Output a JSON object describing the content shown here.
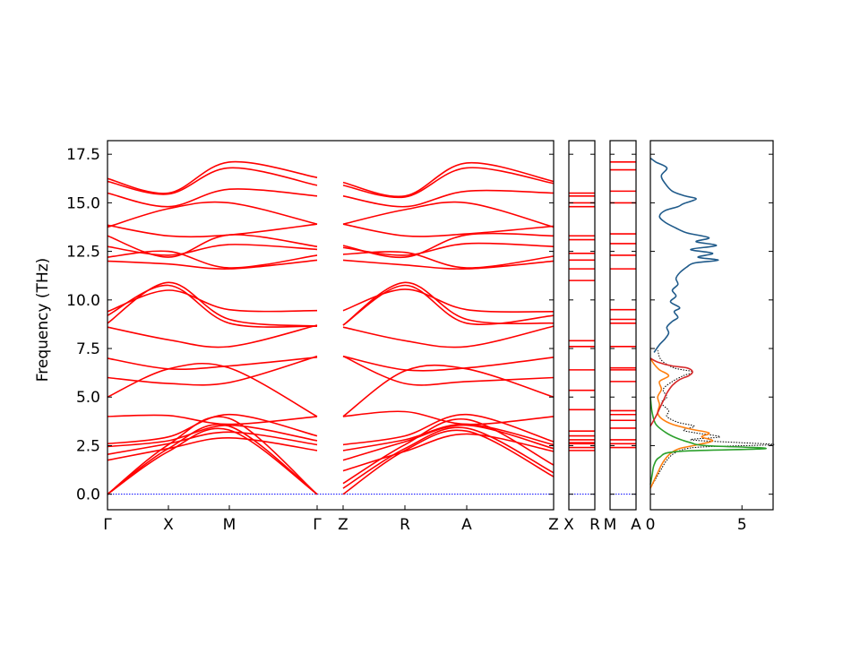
{
  "chart_data": {
    "type": "line",
    "ylabel": "Frequency (THz)",
    "ylim": [
      -0.8,
      18.2
    ],
    "yticks": [
      "0.0",
      "2.5",
      "5.0",
      "7.5",
      "10.0",
      "12.5",
      "15.0",
      "17.5"
    ],
    "ytick_values": [
      0,
      2.5,
      5,
      7.5,
      10,
      12.5,
      15,
      17.5
    ],
    "colors": {
      "band": "#ff0000",
      "zero_line": "#0000ff",
      "dos_total": "#000000",
      "dos_blue": "#1f5a8a",
      "dos_orange": "#ff7f0e",
      "dos_green": "#2ca02c",
      "dos_red": "#d62728"
    },
    "bands": {
      "path_ticks": [
        "Γ",
        "X",
        "M",
        "Γ",
        "Z",
        "R",
        "A",
        "Z"
      ],
      "segments": [
        {
          "from": "Γ",
          "to": "Γ",
          "x": [
            0,
            1,
            2,
            3
          ],
          "branches": [
            [
              0.0,
              2.2,
              3.3,
              0.0
            ],
            [
              0.0,
              2.35,
              3.5,
              0.0
            ],
            [
              0.0,
              2.55,
              3.9,
              0.0
            ],
            [
              1.75,
              2.35,
              2.9,
              2.25
            ],
            [
              2.05,
              2.6,
              3.2,
              2.55
            ],
            [
              2.45,
              2.75,
              3.55,
              2.75
            ],
            [
              2.6,
              2.95,
              4.1,
              3.0
            ],
            [
              4.0,
              4.05,
              3.6,
              4.0
            ],
            [
              5.0,
              6.45,
              6.5,
              4.0
            ],
            [
              6.0,
              5.7,
              5.75,
              7.1
            ],
            [
              7.0,
              6.45,
              6.6,
              7.05
            ],
            [
              8.6,
              7.95,
              7.6,
              8.7
            ],
            [
              8.8,
              10.9,
              9.0,
              8.65
            ],
            [
              9.2,
              10.75,
              8.8,
              8.65
            ],
            [
              9.4,
              10.5,
              9.5,
              9.45
            ],
            [
              12.0,
              11.85,
              11.6,
              12.05
            ],
            [
              12.2,
              12.5,
              11.65,
              12.3
            ],
            [
              12.75,
              12.3,
              12.85,
              12.6
            ],
            [
              13.3,
              12.2,
              13.35,
              12.75
            ],
            [
              13.85,
              13.3,
              13.35,
              13.9
            ],
            [
              13.75,
              14.7,
              15.0,
              13.9
            ],
            [
              15.5,
              14.8,
              15.7,
              15.35
            ],
            [
              16.1,
              15.45,
              16.8,
              15.9
            ],
            [
              16.25,
              15.5,
              17.1,
              16.3
            ]
          ]
        },
        {
          "from": "Z",
          "to": "Z",
          "x": [
            0,
            1,
            2,
            3
          ],
          "branches": [
            [
              0.0,
              2.25,
              3.25,
              0.9
            ],
            [
              0.3,
              2.35,
              3.4,
              1.1
            ],
            [
              0.55,
              2.55,
              3.85,
              1.5
            ],
            [
              1.2,
              2.2,
              3.1,
              2.2
            ],
            [
              1.75,
              2.7,
              3.55,
              2.35
            ],
            [
              2.25,
              2.8,
              3.6,
              2.55
            ],
            [
              2.55,
              3.0,
              4.1,
              2.7
            ],
            [
              4.0,
              4.25,
              3.6,
              4.0
            ],
            [
              4.0,
              6.35,
              6.45,
              5.0
            ],
            [
              7.1,
              5.7,
              5.8,
              6.0
            ],
            [
              7.1,
              6.4,
              6.5,
              7.05
            ],
            [
              8.6,
              7.9,
              7.6,
              8.65
            ],
            [
              8.7,
              10.9,
              9.0,
              8.8
            ],
            [
              8.7,
              10.75,
              8.8,
              9.2
            ],
            [
              9.45,
              10.55,
              9.5,
              9.4
            ],
            [
              12.05,
              11.8,
              11.6,
              12.0
            ],
            [
              12.35,
              12.45,
              11.65,
              12.25
            ],
            [
              12.7,
              12.3,
              12.9,
              12.75
            ],
            [
              12.8,
              12.2,
              13.35,
              13.3
            ],
            [
              13.9,
              13.3,
              13.4,
              13.8
            ],
            [
              13.9,
              14.65,
              15.0,
              13.75
            ],
            [
              15.35,
              14.8,
              15.6,
              15.5
            ],
            [
              15.9,
              15.3,
              16.8,
              16.0
            ],
            [
              16.05,
              15.35,
              17.05,
              16.1
            ]
          ]
        }
      ],
      "flat_panels": [
        {
          "labels": [
            "X",
            "R"
          ],
          "levels": [
            2.25,
            2.4,
            2.6,
            2.65,
            2.8,
            3.0,
            3.25,
            4.35,
            5.35,
            6.4,
            7.6,
            7.9,
            11.0,
            11.6,
            12.05,
            12.4,
            13.1,
            13.3,
            14.8,
            15.0,
            15.35,
            15.5
          ]
        },
        {
          "labels": [
            "M",
            "A"
          ],
          "levels": [
            2.4,
            2.6,
            2.8,
            3.4,
            3.8,
            4.1,
            4.3,
            5.8,
            6.4,
            6.5,
            7.6,
            8.8,
            9.0,
            9.5,
            11.6,
            12.3,
            12.9,
            13.4,
            15.0,
            15.6,
            16.7,
            17.1
          ]
        }
      ]
    },
    "dos": {
      "xticks": [
        "0",
        "5"
      ],
      "xtick_values": [
        0,
        5
      ],
      "xlim": [
        0,
        6.7
      ],
      "curves": [
        {
          "color": "dos_total",
          "style": "dotted",
          "points": [
            [
              0,
              0.3
            ],
            [
              0.3,
              0.8
            ],
            [
              0.6,
              1.3
            ],
            [
              0.9,
              1.75
            ],
            [
              1.3,
              2.1
            ],
            [
              2.0,
              2.35
            ],
            [
              3.3,
              2.45
            ],
            [
              6.7,
              2.55
            ],
            [
              5.0,
              2.65
            ],
            [
              2.2,
              2.8
            ],
            [
              3.8,
              2.95
            ],
            [
              2.5,
              3.15
            ],
            [
              1.8,
              3.3
            ],
            [
              2.4,
              3.5
            ],
            [
              1.5,
              3.7
            ],
            [
              0.9,
              4.0
            ],
            [
              1.0,
              4.3
            ],
            [
              0.6,
              4.7
            ],
            [
              0.9,
              5.0
            ],
            [
              0.7,
              5.4
            ],
            [
              1.2,
              5.8
            ],
            [
              1.8,
              6.1
            ],
            [
              2.3,
              6.3
            ],
            [
              1.3,
              6.5
            ],
            [
              0.6,
              6.9
            ],
            [
              0.4,
              7.4
            ]
          ]
        },
        {
          "color": "dos_blue",
          "style": "solid",
          "points": [
            [
              0.2,
              7.3
            ],
            [
              0.5,
              7.7
            ],
            [
              0.8,
              8.0
            ],
            [
              1.0,
              8.3
            ],
            [
              0.9,
              8.6
            ],
            [
              1.2,
              8.9
            ],
            [
              1.5,
              9.1
            ],
            [
              1.3,
              9.4
            ],
            [
              1.6,
              9.6
            ],
            [
              1.1,
              9.9
            ],
            [
              1.4,
              10.2
            ],
            [
              1.2,
              10.5
            ],
            [
              1.5,
              10.8
            ],
            [
              1.4,
              11.1
            ],
            [
              1.6,
              11.4
            ],
            [
              2.0,
              11.7
            ],
            [
              2.4,
              11.9
            ],
            [
              3.7,
              12.05
            ],
            [
              2.6,
              12.2
            ],
            [
              3.4,
              12.4
            ],
            [
              2.2,
              12.6
            ],
            [
              3.6,
              12.8
            ],
            [
              2.5,
              13.0
            ],
            [
              3.2,
              13.2
            ],
            [
              2.0,
              13.45
            ],
            [
              1.4,
              13.7
            ],
            [
              0.8,
              14.0
            ],
            [
              0.5,
              14.3
            ],
            [
              0.8,
              14.6
            ],
            [
              1.5,
              14.8
            ],
            [
              1.8,
              14.95
            ],
            [
              2.5,
              15.2
            ],
            [
              1.9,
              15.35
            ],
            [
              1.2,
              15.6
            ],
            [
              0.8,
              16.0
            ],
            [
              0.6,
              16.4
            ],
            [
              0.9,
              16.8
            ],
            [
              0.3,
              17.1
            ],
            [
              0.0,
              17.3
            ]
          ]
        },
        {
          "color": "dos_orange",
          "style": "solid",
          "points": [
            [
              0,
              0.3
            ],
            [
              0.2,
              0.7
            ],
            [
              0.4,
              1.1
            ],
            [
              0.6,
              1.5
            ],
            [
              0.8,
              1.8
            ],
            [
              1.1,
              2.1
            ],
            [
              1.6,
              2.35
            ],
            [
              2.6,
              2.55
            ],
            [
              3.4,
              2.75
            ],
            [
              2.8,
              2.95
            ],
            [
              3.2,
              3.15
            ],
            [
              2.2,
              3.35
            ],
            [
              1.2,
              3.6
            ],
            [
              0.6,
              3.9
            ],
            [
              0.4,
              4.2
            ],
            [
              0.5,
              4.6
            ],
            [
              0.4,
              5.0
            ],
            [
              0.6,
              5.4
            ],
            [
              0.5,
              5.8
            ],
            [
              1.0,
              6.1
            ],
            [
              0.5,
              6.4
            ],
            [
              0.2,
              6.7
            ],
            [
              0.0,
              7.0
            ]
          ]
        },
        {
          "color": "dos_green",
          "style": "solid",
          "points": [
            [
              0,
              0.5
            ],
            [
              0.1,
              1.0
            ],
            [
              0.2,
              1.5
            ],
            [
              0.5,
              1.9
            ],
            [
              1.5,
              2.2
            ],
            [
              6.3,
              2.35
            ],
            [
              3.0,
              2.5
            ],
            [
              2.2,
              2.65
            ],
            [
              1.4,
              2.9
            ],
            [
              0.8,
              3.2
            ],
            [
              0.3,
              3.6
            ],
            [
              0.1,
              4.2
            ],
            [
              0.0,
              5.0
            ]
          ]
        },
        {
          "color": "dos_red",
          "style": "solid",
          "points": [
            [
              0.0,
              3.5
            ],
            [
              0.3,
              4.0
            ],
            [
              0.5,
              4.4
            ],
            [
              0.7,
              4.8
            ],
            [
              0.9,
              5.2
            ],
            [
              1.2,
              5.6
            ],
            [
              1.6,
              5.9
            ],
            [
              2.1,
              6.1
            ],
            [
              2.3,
              6.3
            ],
            [
              2.0,
              6.5
            ],
            [
              1.2,
              6.6
            ],
            [
              0.4,
              6.8
            ],
            [
              0.0,
              7.0
            ]
          ]
        }
      ]
    }
  }
}
